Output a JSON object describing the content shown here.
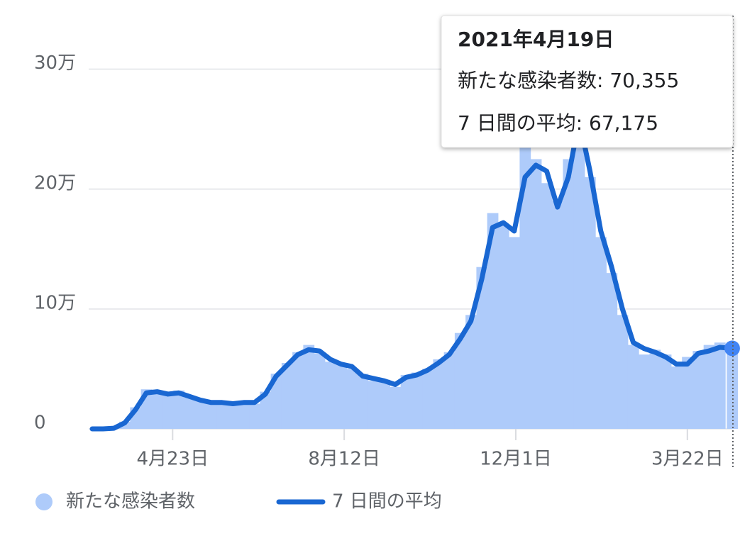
{
  "chart_data": {
    "type": "bar_line",
    "x": [
      0,
      7,
      14,
      21,
      28,
      35,
      42,
      49,
      56,
      63,
      70,
      77,
      84,
      91,
      98,
      105,
      112,
      119,
      126,
      133,
      140,
      147,
      154,
      161,
      168,
      175,
      182,
      189,
      196,
      203,
      210,
      217,
      224,
      231,
      238,
      245,
      252,
      259,
      266,
      273,
      280,
      287,
      294,
      301,
      308,
      315,
      322,
      329,
      336,
      343,
      350,
      357,
      364,
      371,
      378,
      385,
      392,
      399,
      406,
      414
    ],
    "series": [
      {
        "name": "新たな感染者数",
        "color": "#aecbfa",
        "values": [
          0,
          0,
          800,
          6000,
          18000,
          33000,
          30000,
          28000,
          32000,
          26000,
          25000,
          21000,
          23000,
          20000,
          23000,
          21000,
          31000,
          46000,
          55000,
          64000,
          70000,
          63000,
          56000,
          55000,
          50000,
          46000,
          40000,
          41000,
          35000,
          45000,
          47000,
          50000,
          58000,
          64000,
          80000,
          95000,
          135000,
          180000,
          170000,
          160000,
          235000,
          225000,
          205000,
          190000,
          225000,
          275000,
          210000,
          160000,
          130000,
          95000,
          70000,
          62000,
          66000,
          62000,
          52000,
          60000,
          65000,
          70000,
          72000,
          70355
        ]
      },
      {
        "name": "7 日間の平均",
        "color": "#1967d2",
        "values": [
          0,
          0,
          500,
          5000,
          16000,
          30000,
          31000,
          29000,
          30000,
          27000,
          24000,
          22000,
          22000,
          21000,
          22000,
          22000,
          29000,
          44000,
          53000,
          62000,
          66000,
          65000,
          58000,
          54000,
          52000,
          44000,
          42000,
          40000,
          37000,
          43000,
          45000,
          49000,
          55000,
          62000,
          75000,
          90000,
          125000,
          168000,
          172000,
          165000,
          210000,
          220000,
          215000,
          185000,
          210000,
          258000,
          215000,
          165000,
          135000,
          100000,
          72000,
          67000,
          64000,
          60000,
          54000,
          54000,
          63000,
          65000,
          68000,
          67175
        ]
      }
    ],
    "xlim": [
      0,
      414
    ],
    "xticks": [
      {
        "value": 52,
        "label": "4月23日"
      },
      {
        "value": 163,
        "label": "8月12日"
      },
      {
        "value": 274,
        "label": "12月1日"
      },
      {
        "value": 385,
        "label": "3月22日"
      }
    ],
    "ylim": [
      0,
      340000
    ],
    "yticks": [
      0,
      {
        "value": 100000,
        "label": "10万"
      },
      {
        "value": 200000,
        "label": "20万"
      },
      {
        "value": 300000,
        "label": "30万"
      }
    ],
    "grid": true,
    "tooltip": {
      "title": "2021年4月19日",
      "lines": [
        "新たな感染者数: 70,355",
        "7 日間の平均: 67,175"
      ]
    }
  }
}
